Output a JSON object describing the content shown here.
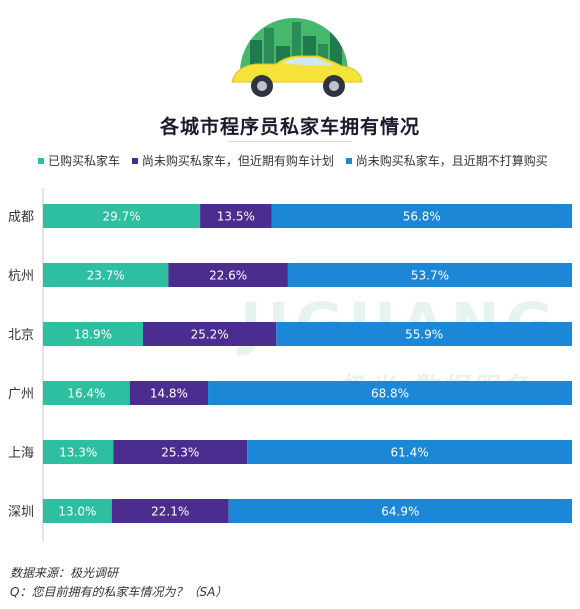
{
  "chart_data": {
    "type": "bar",
    "orientation": "horizontal",
    "stacked": true,
    "title": "各城市程序员私家车拥有情况",
    "categories": [
      "成都",
      "杭州",
      "北京",
      "广州",
      "上海",
      "深圳"
    ],
    "series": [
      {
        "name": "已购买私家车",
        "color": "#2ebfa0",
        "values": [
          29.7,
          23.7,
          18.9,
          16.4,
          13.3,
          13.0
        ],
        "labels": [
          "29.7%",
          "23.7%",
          "18.9%",
          "16.4%",
          "13.3%",
          "13.0%"
        ]
      },
      {
        "name": "尚未购买私家车，但近期有购车计划",
        "color": "#4b2d8f",
        "values": [
          13.5,
          22.6,
          25.2,
          14.8,
          25.3,
          22.1
        ],
        "labels": [
          "13.5%",
          "22.6%",
          "25.2%",
          "14.8%",
          "25.3%",
          "22.1%"
        ]
      },
      {
        "name": "尚未购买私家车，且近期不打算购买",
        "color": "#1b87d6",
        "values": [
          56.8,
          53.7,
          55.9,
          68.8,
          61.4,
          64.9
        ],
        "labels": [
          "56.8%",
          "53.7%",
          "55.9%",
          "68.8%",
          "61.4%",
          "64.9%"
        ]
      }
    ],
    "xlim": [
      0,
      100
    ],
    "legend_position": "top",
    "grid": false
  },
  "watermark": {
    "text": "JIGUANG",
    "subtext": "极光 数据服务"
  },
  "footer": {
    "source": "数据来源：极光调研",
    "question": "Q：您目前拥有的私家车情况为？（SA）"
  },
  "colors": {
    "car_body": "#f5e33a",
    "skyline_dark": "#1f7a4d",
    "skyline_light": "#45b86c"
  }
}
